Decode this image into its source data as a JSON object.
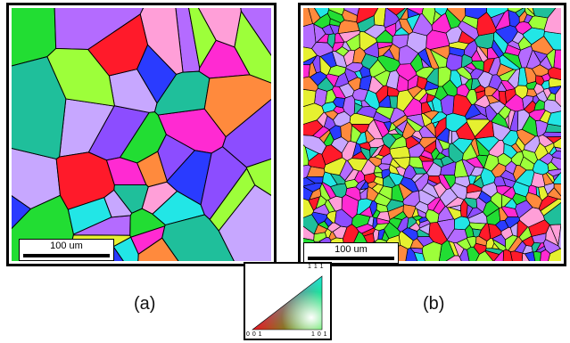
{
  "figure": {
    "panel_a": {
      "label": "(a)",
      "scale_bar": "100 um"
    },
    "panel_b": {
      "label": "(b)",
      "scale_bar": "100 um"
    },
    "legend": {
      "corner_111": "1 1 1",
      "corner_001": "0 0 1",
      "corner_101": "1 0 1"
    }
  },
  "colors": {
    "red": "#ff1a2a",
    "green": "#22dd33",
    "blue": "#2a3bff",
    "cyan": "#22e6e6",
    "magenta": "#ff2ad2",
    "purple": "#8c4dff",
    "yellow": "#e6f030",
    "orange": "#ff8a3d",
    "pink": "#ff9fd8",
    "violet": "#b46bff",
    "lavender": "#c7a7ff",
    "lime": "#9dff3a",
    "teal": "#1fbf9b",
    "grain_boundary": "#000000"
  }
}
